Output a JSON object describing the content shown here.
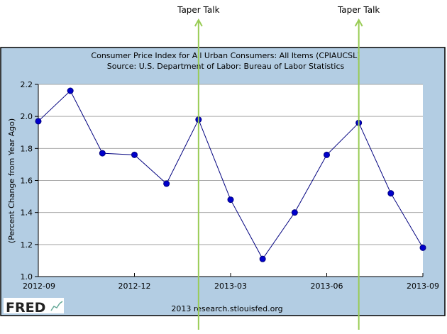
{
  "chart_data": {
    "type": "line",
    "title": "Consumer Price Index for All Urban Consumers: All Items (CPIAUCSL)",
    "subtitle": "Source: U.S. Department of Labor: Bureau of Labor Statistics",
    "ylabel": "(Percent Change from Year Ago)",
    "xlabel": "",
    "x": [
      "2012-09",
      "2012-10",
      "2012-11",
      "2012-12",
      "2013-01",
      "2013-02",
      "2013-03",
      "2013-04",
      "2013-05",
      "2013-06",
      "2013-07",
      "2013-08",
      "2013-09"
    ],
    "values": [
      1.97,
      2.16,
      1.77,
      1.76,
      1.58,
      1.98,
      1.48,
      1.11,
      1.4,
      1.76,
      1.96,
      1.52,
      1.18
    ],
    "ylim": [
      1.0,
      2.2
    ],
    "yticks": [
      "1.0",
      "1.2",
      "1.4",
      "1.6",
      "1.8",
      "2.0",
      "2.2"
    ],
    "xticks": [
      "2012-09",
      "2012-12",
      "2013-03",
      "2013-06",
      "2013-09"
    ],
    "grid": true,
    "annotations": [
      {
        "label": "Taper Talk",
        "x": "2013-02"
      },
      {
        "label": "Taper Talk",
        "x": "2013-07"
      }
    ],
    "footer": "2013 research.stlouisfed.org",
    "logo": "FRED",
    "colors": {
      "line": "#00007f",
      "marker": "#0000cc",
      "frame": "#b3cde3",
      "annotation": "#99cc55"
    }
  }
}
